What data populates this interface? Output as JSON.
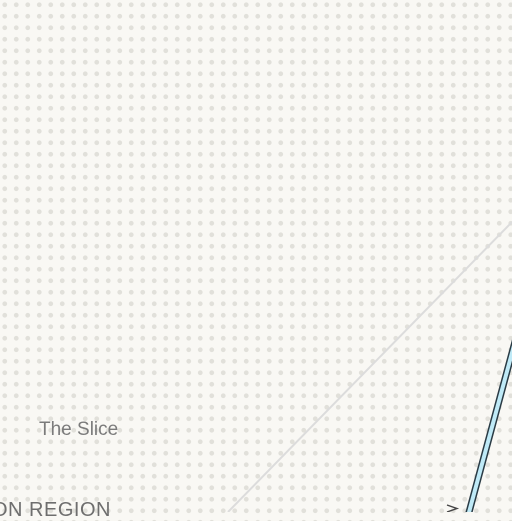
{
  "map": {
    "labels": {
      "poi": "The Slice",
      "region": "ON REGION"
    },
    "colors": {
      "background": "#f9f8f4",
      "dot_pattern": "#e1e0da",
      "minor_road": "#dcdcdc",
      "route_fill": "#bfeaf7",
      "route_outline": "#2a3b45",
      "label_text": "#7b7b7b"
    },
    "icons": {
      "route_marker": "chevron-right-icon"
    }
  }
}
